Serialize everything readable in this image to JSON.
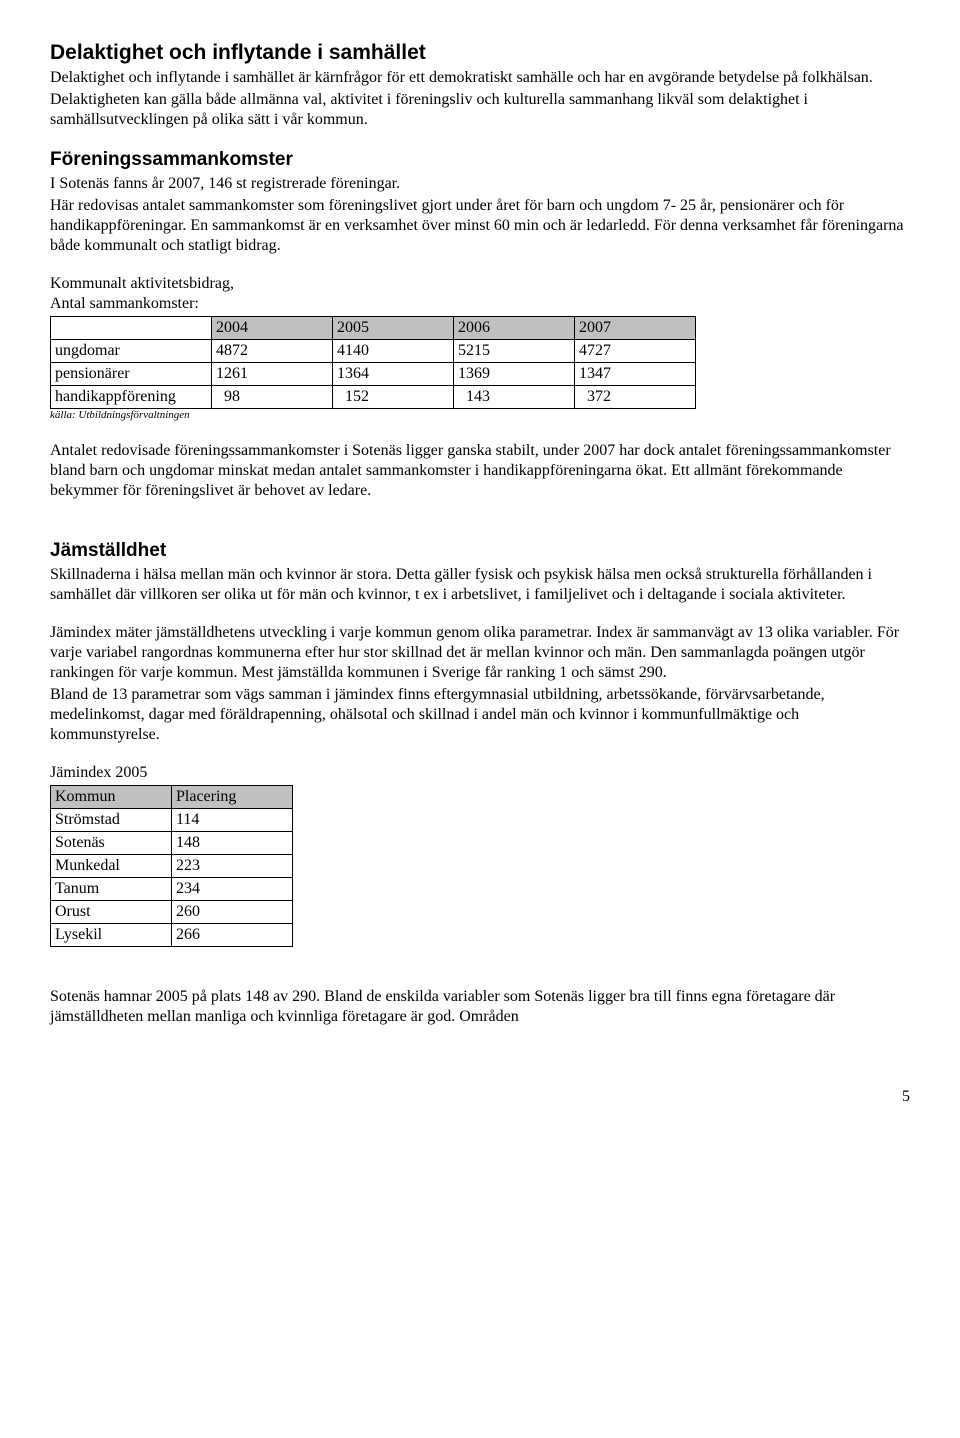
{
  "section1": {
    "heading": "Delaktighet och inflytande i samhället",
    "para1": "Delaktighet och inflytande i samhället är kärnfrågor för ett demokratiskt samhälle och har en avgörande betydelse på folkhälsan.",
    "para2": "Delaktigheten kan gälla både allmänna val, aktivitet i föreningsliv och kulturella sammanhang likväl som delaktighet i samhällsutvecklingen på olika sätt i vår kommun."
  },
  "section2": {
    "heading": "Föreningssammankomster",
    "para1": "I Sotenäs fanns år 2007, 146 st registrerade föreningar.",
    "para2": "Här redovisas antalet sammankomster som föreningslivet gjort under året för barn och ungdom 7- 25 år, pensionärer och för handikappföreningar. En sammankomst är en verksamhet över minst 60 min och är ledarledd. För denna verksamhet får föreningarna både kommunalt och statligt bidrag.",
    "table_intro_line1": "Kommunalt aktivitetsbidrag,",
    "table_intro_line2": "Antal sammankomster:",
    "table1": {
      "header_bg": "#c0c0c0",
      "col_widths": [
        "150px",
        "110px",
        "110px",
        "110px",
        "110px"
      ],
      "headers": [
        "",
        "2004",
        "2005",
        "2006",
        "2007"
      ],
      "rows": [
        [
          "ungdomar",
          "4872",
          "4140",
          "5215",
          "4727"
        ],
        [
          "pensionärer",
          "1261",
          "1364",
          "1369",
          "1347"
        ],
        [
          "handikappförening",
          "  98",
          "  152",
          "  143",
          "  372"
        ]
      ]
    },
    "source": "källa: Utbildningsförvaltningen",
    "para3": " Antalet redovisade föreningssammankomster i Sotenäs ligger ganska stabilt, under 2007 har dock antalet föreningssammankomster bland barn och ungdomar minskat medan antalet sammankomster i handikappföreningarna ökat. Ett allmänt förekommande bekymmer för föreningslivet är behovet av ledare."
  },
  "section3": {
    "heading": "Jämställdhet",
    "para1": "Skillnaderna i hälsa mellan män och kvinnor är stora. Detta gäller fysisk och psykisk hälsa men också strukturella förhållanden i samhället där villkoren ser olika ut för män och kvinnor, t ex i arbetslivet, i familjelivet och i deltagande i sociala aktiviteter.",
    "para2": "Jämindex mäter jämställdhetens utveckling i varje kommun genom olika parametrar. Index är sammanvägt av 13 olika variabler. För varje variabel rangordnas kommunerna efter hur stor skillnad det är mellan kvinnor och män. Den sammanlagda poängen utgör rankingen för varje kommun. Mest jämställda kommunen i Sverige får ranking 1 och sämst 290.",
    "para3": "Bland de 13 parametrar som vägs samman i jämindex finns eftergymnasial utbildning, arbetssökande, förvärvsarbetande, medelinkomst, dagar med föräldrapenning, ohälsotal och skillnad i andel män och kvinnor i kommunfullmäktige och kommunstyrelse.",
    "table2_title": "Jämindex 2005",
    "table2": {
      "header_bg": "#c0c0c0",
      "col_widths": [
        "110px",
        "110px"
      ],
      "headers": [
        "Kommun",
        "Placering"
      ],
      "rows": [
        [
          "Strömstad",
          "114"
        ],
        [
          "Sotenäs",
          "148"
        ],
        [
          "Munkedal",
          "223"
        ],
        [
          "Tanum",
          "234"
        ],
        [
          "Orust",
          "260"
        ],
        [
          "Lysekil",
          "266"
        ]
      ]
    },
    "para4": "Sotenäs hamnar 2005 på plats 148 av 290. Bland de enskilda variabler som Sotenäs ligger bra till finns egna företagare där jämställdheten mellan manliga och kvinnliga företagare är god.  Områden"
  },
  "page_number": "5"
}
